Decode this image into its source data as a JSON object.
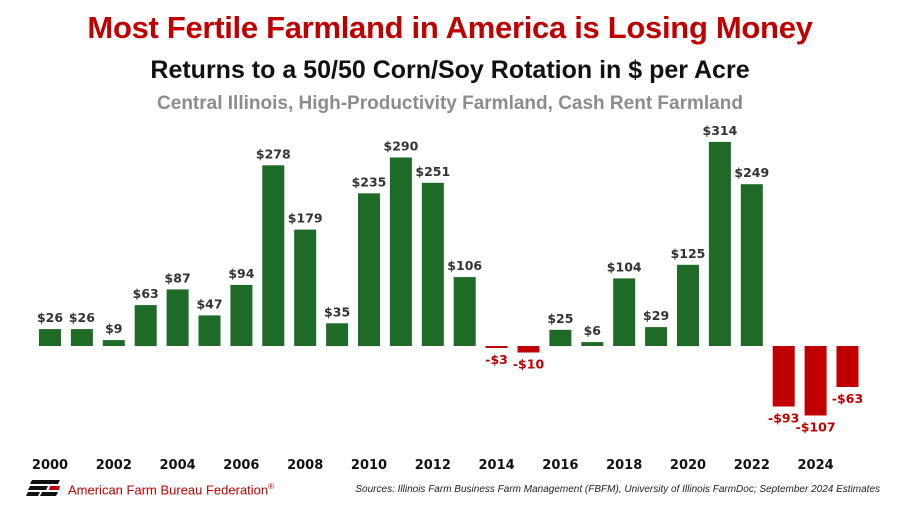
{
  "colors": {
    "positive": "#1e6b25",
    "negative": "#c00000",
    "positive_label": "#333333",
    "negative_label": "#c00000"
  },
  "footer": {
    "organization": "American Farm Bureau Federation",
    "organization_mark": "®",
    "source": "Sources: Illinois Farm Business Farm Management (FBFM), University of Illinois FarmDoc; September 2024 Estimates",
    "logo_icon": "fb-logo-icon"
  },
  "chart_data": {
    "type": "bar",
    "title": "Most Fertile Farmland in America is Losing Money",
    "subtitle": "Returns to a 50/50 Corn/Soy Rotation in $ per Acre",
    "subtitle2": "Central Illinois, High-Productivity Farmland, Cash Rent Farmland",
    "xlabel": "",
    "ylabel": "",
    "ylim": [
      -115,
      330
    ],
    "grid": false,
    "legend": "none",
    "categories": [
      "2000",
      "2001",
      "2002",
      "2003",
      "2004",
      "2005",
      "2006",
      "2007",
      "2008",
      "2009",
      "2010",
      "2011",
      "2012",
      "2013",
      "2014",
      "2015",
      "2016",
      "2017",
      "2018",
      "2019",
      "2020",
      "2021",
      "2022",
      "2023",
      "2024",
      "2025"
    ],
    "values": [
      26,
      26,
      9,
      63,
      87,
      47,
      94,
      278,
      179,
      35,
      235,
      290,
      251,
      106,
      -3,
      -10,
      25,
      6,
      104,
      29,
      125,
      314,
      249,
      -93,
      -107,
      -63
    ],
    "data_labels": [
      "$26",
      "$26",
      "$9",
      "$63",
      "$87",
      "$47",
      "$94",
      "$278",
      "$179",
      "$35",
      "$235",
      "$290",
      "$251",
      "$106",
      "-$3",
      "-$10",
      "$25",
      "$6",
      "$104",
      "$29",
      "$125",
      "$314",
      "$249",
      "-$93",
      "-$107",
      "-$63"
    ],
    "tick_labels": [
      "2000",
      "2002",
      "2004",
      "2006",
      "2008",
      "2010",
      "2012",
      "2014",
      "2016",
      "2018",
      "2020",
      "2022",
      "2024"
    ]
  }
}
